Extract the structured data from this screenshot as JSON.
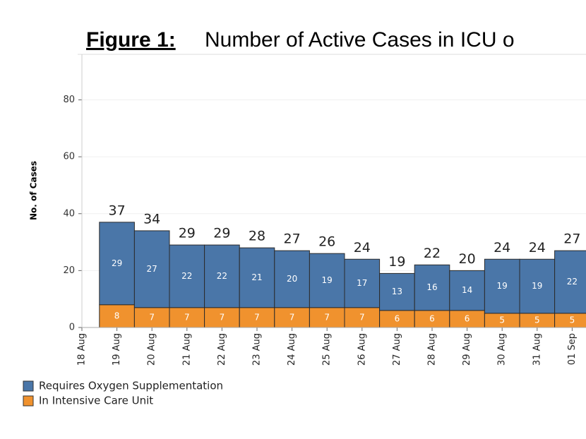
{
  "chart_data": {
    "type": "stacked_bar",
    "title_prefix": "Figure 1:",
    "title": "Number of Active Cases in ICU o",
    "y_label": "No. of Cases",
    "categories": [
      "18 Aug",
      "19 Aug",
      "20 Aug",
      "21 Aug",
      "22 Aug",
      "23 Aug",
      "24 Aug",
      "25 Aug",
      "26 Aug",
      "27 Aug",
      "28 Aug",
      "29 Aug",
      "30 Aug",
      "31 Aug",
      "01 Sep"
    ],
    "series": [
      {
        "name": "In Intensive Care Unit",
        "color": "#f0922e",
        "values": [
          null,
          8,
          7,
          7,
          7,
          7,
          7,
          7,
          7,
          6,
          6,
          6,
          5,
          5,
          5
        ]
      },
      {
        "name": "Requires Oxygen Supplementation",
        "color": "#4a76a8",
        "values": [
          null,
          29,
          27,
          22,
          22,
          21,
          20,
          19,
          17,
          13,
          16,
          14,
          19,
          19,
          22
        ]
      }
    ],
    "totals": [
      null,
      37,
      34,
      29,
      29,
      28,
      27,
      26,
      24,
      19,
      22,
      20,
      24,
      24,
      27
    ],
    "ylim": [
      0,
      96
    ],
    "yticks": [
      0,
      20,
      40,
      60,
      80
    ],
    "grid": true
  }
}
